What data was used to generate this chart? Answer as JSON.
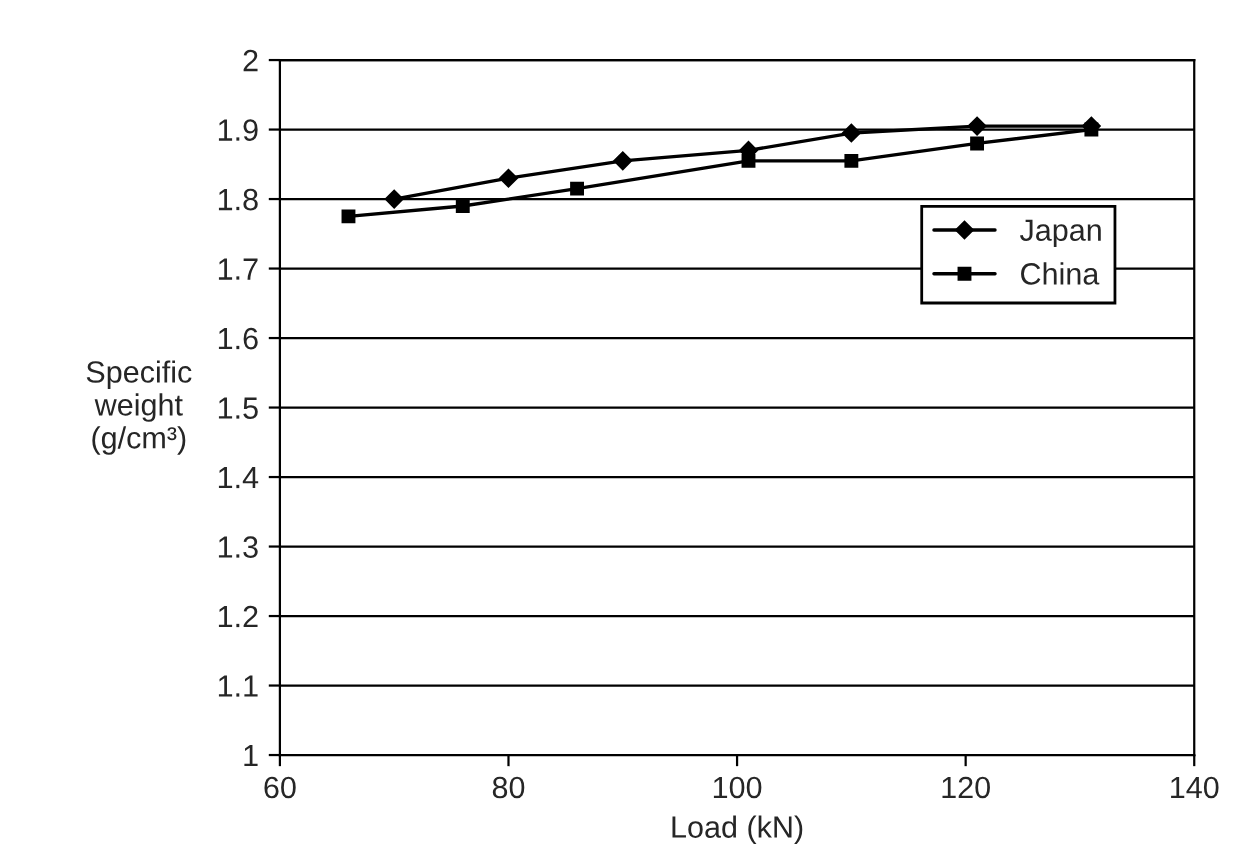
{
  "chart_data": {
    "type": "line",
    "xlabel": "Load (kN)",
    "ylabel": "Specific\nweight\n(g/cm³)",
    "xlim": [
      60,
      140
    ],
    "xticks": [
      60,
      80,
      100,
      120,
      140
    ],
    "ylim": [
      1,
      2
    ],
    "yticks": [
      1,
      1.1,
      1.2,
      1.3,
      1.4,
      1.5,
      1.6,
      1.7,
      1.8,
      1.9,
      2
    ],
    "grid": "y",
    "legend": "right",
    "series": [
      {
        "name": "Japan",
        "color": "#000000",
        "marker": "diamond",
        "x": [
          70,
          80,
          90,
          101,
          110,
          121,
          131
        ],
        "values": [
          1.8,
          1.83,
          1.855,
          1.87,
          1.895,
          1.905,
          1.905
        ]
      },
      {
        "name": "China",
        "color": "#000000",
        "marker": "square",
        "x": [
          66,
          76,
          86,
          101,
          110,
          121,
          131
        ],
        "values": [
          1.775,
          1.79,
          1.815,
          1.855,
          1.855,
          1.88,
          1.9
        ]
      }
    ]
  }
}
